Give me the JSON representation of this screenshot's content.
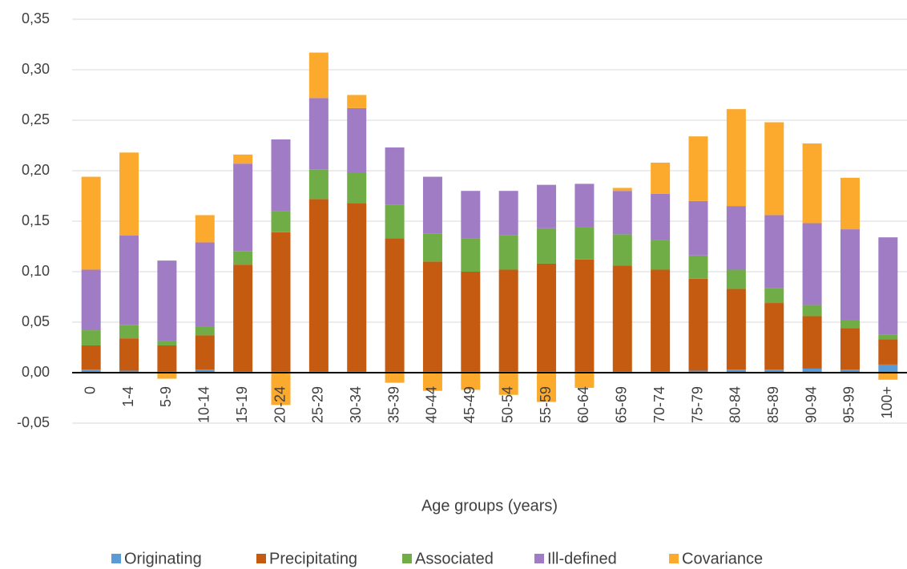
{
  "chart_data": {
    "type": "stacked_bar",
    "x_label": "Age groups (years)",
    "categories": [
      "0",
      "1-4",
      "5-9",
      "10-14",
      "15-19",
      "20-24",
      "25-29",
      "30-34",
      "35-39",
      "40-44",
      "45-49",
      "50-54",
      "55-59",
      "60-64",
      "65-69",
      "70-74",
      "75-79",
      "80-84",
      "85-89",
      "90-94",
      "95-99",
      "100+"
    ],
    "series": [
      {
        "name": "Originating",
        "color": "#5b9bd5",
        "values": [
          0.003,
          0.002,
          0.001,
          0.003,
          0.001,
          0.001,
          0.001,
          0.001,
          0.001,
          0.001,
          0.001,
          0.001,
          0.001,
          0.001,
          0.001,
          0.001,
          0.002,
          0.003,
          0.003,
          0.004,
          0.003,
          0.008
        ]
      },
      {
        "name": "Precipitating",
        "color": "#c55a11",
        "values": [
          0.024,
          0.032,
          0.026,
          0.034,
          0.106,
          0.138,
          0.171,
          0.167,
          0.132,
          0.109,
          0.099,
          0.101,
          0.107,
          0.111,
          0.105,
          0.101,
          0.091,
          0.08,
          0.066,
          0.052,
          0.041,
          0.025
        ]
      },
      {
        "name": "Associated",
        "color": "#70ad47",
        "values": [
          0.015,
          0.013,
          0.004,
          0.009,
          0.013,
          0.021,
          0.029,
          0.03,
          0.033,
          0.028,
          0.033,
          0.034,
          0.035,
          0.032,
          0.031,
          0.029,
          0.023,
          0.019,
          0.015,
          0.011,
          0.008,
          0.005
        ]
      },
      {
        "name": "Ill-defined",
        "color": "#a07cc5",
        "values": [
          0.06,
          0.089,
          0.08,
          0.083,
          0.087,
          0.071,
          0.071,
          0.064,
          0.057,
          0.056,
          0.047,
          0.044,
          0.043,
          0.043,
          0.043,
          0.046,
          0.054,
          0.063,
          0.072,
          0.081,
          0.09,
          0.096
        ]
      },
      {
        "name": "Covariance",
        "color": "#fbaa2e",
        "values": [
          0.092,
          0.082,
          -0.006,
          0.027,
          0.009,
          -0.032,
          0.045,
          0.013,
          -0.01,
          -0.018,
          -0.017,
          -0.022,
          -0.029,
          -0.015,
          0.003,
          0.031,
          0.064,
          0.096,
          0.092,
          0.079,
          0.051,
          -0.007
        ]
      }
    ],
    "ylim": [
      -0.05,
      0.35
    ],
    "yticks": [
      {
        "value": -0.05,
        "label": "-0,05"
      },
      {
        "value": 0,
        "label": "0,00"
      },
      {
        "value": 0.05,
        "label": "0,05"
      },
      {
        "value": 0.1,
        "label": "0,10"
      },
      {
        "value": 0.15,
        "label": "0,15"
      },
      {
        "value": 0.2,
        "label": "0,20"
      },
      {
        "value": 0.25,
        "label": "0,25"
      },
      {
        "value": 0.3,
        "label": "0,30"
      },
      {
        "value": 0.35,
        "label": "0,35"
      }
    ],
    "grid": true,
    "legend": "bottom"
  }
}
